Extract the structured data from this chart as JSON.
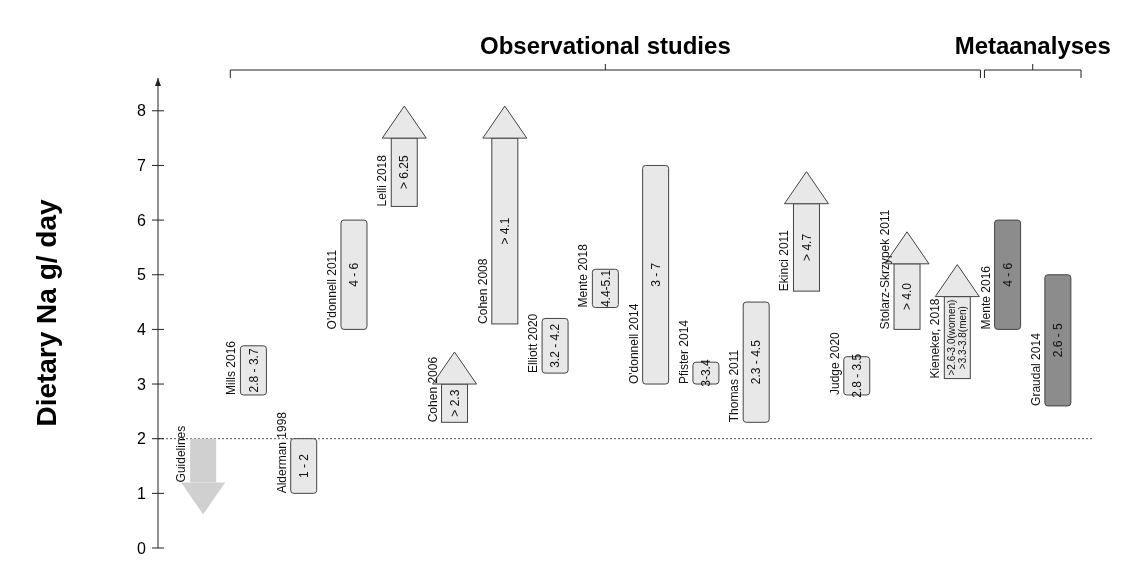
{
  "chart_data": {
    "type": "bar",
    "ylabel": "Dietary Na g/ day",
    "categories": [
      "Guidelines",
      "Mills 2016",
      "Alderman 1998",
      "O'donnell 2011",
      "Lelli 2018",
      "Cohen 2006",
      "Cohen 2008",
      "Elliott 2020",
      "Mente 2018",
      "O'donnell 2014",
      "Pfister 2014",
      "Thomas 2011",
      "Ekinci 2011",
      "Judge 2020",
      "Stolarz-Skrzypek 2011",
      "Kieneker, 2018",
      "Mente 2016",
      "Graudal 2014"
    ],
    "series": [
      {
        "marker": "none",
        "color": "#e8e8e8",
        "base": [
          null,
          2.8,
          1,
          4,
          null,
          null,
          null,
          3.2,
          4.4,
          3,
          3,
          2.3,
          null,
          2.8,
          null,
          null,
          null,
          null
        ],
        "values": [
          null,
          0.9,
          1,
          2,
          null,
          null,
          null,
          1.0,
          0.7,
          4,
          0.4,
          2.2,
          null,
          0.7,
          null,
          null,
          null,
          null
        ]
      },
      {
        "marker": "triangle",
        "color": "#e8e8e8",
        "base": [
          null,
          null,
          null,
          null,
          6.25,
          2.3,
          4.1,
          null,
          null,
          null,
          null,
          null,
          4.7,
          null,
          4.0,
          3.1,
          null,
          null
        ],
        "values": [
          null,
          null,
          null,
          null,
          1.25,
          0.7,
          3.4,
          null,
          null,
          null,
          null,
          null,
          1.6,
          null,
          1.2,
          1.5,
          null,
          null
        ]
      },
      {
        "marker": "triangle",
        "color": "#d0d0d0",
        "base": [
          2,
          null,
          null,
          null,
          null,
          null,
          null,
          null,
          null,
          null,
          null,
          null,
          null,
          null,
          null,
          null,
          null,
          null
        ],
        "values": [
          -0.8,
          null,
          null,
          null,
          null,
          null,
          null,
          null,
          null,
          null,
          null,
          null,
          null,
          null,
          null,
          null,
          null,
          null
        ]
      },
      {
        "marker": "none",
        "color": "#8c8c8c",
        "base": [
          null,
          null,
          null,
          null,
          null,
          null,
          null,
          null,
          null,
          null,
          null,
          null,
          null,
          null,
          null,
          null,
          4,
          2.6
        ],
        "values": [
          null,
          null,
          null,
          null,
          null,
          null,
          null,
          null,
          null,
          null,
          null,
          null,
          null,
          null,
          null,
          null,
          2,
          2.4
        ]
      }
    ],
    "ylim": [
      0,
      8.6
    ],
    "yticks": [
      0,
      1,
      2,
      3,
      4,
      5,
      6,
      7,
      8
    ],
    "ref_lines": [
      {
        "axis": "y",
        "value": 2,
        "line_style": "dotted",
        "color": "#555555"
      }
    ],
    "annotations": [
      "Observational studies",
      "Metaanalyses",
      "2.8 - 3.7",
      "1 - 2",
      "4 - 6",
      "> 6.25",
      "> 2.3",
      "> 4.1",
      "3.2 - 4.2",
      "4.4-5.1",
      "3 - 7",
      "3-3.4",
      "2.3 - 4.5",
      "> 4.7",
      "2.8 - 3.5",
      "> 4.0",
      ">2.6-3.0(women)\n>3.3-3.8(men)",
      "4 - 6",
      "2.6 - 5"
    ],
    "grid": false
  }
}
